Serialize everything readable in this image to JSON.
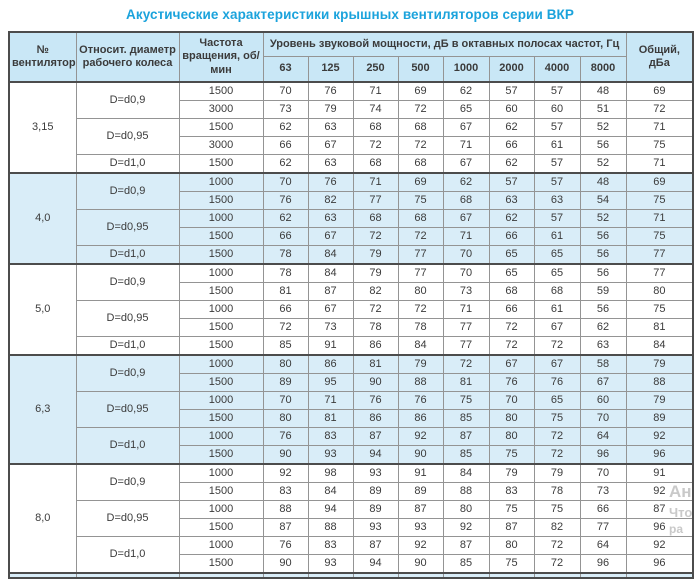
{
  "title": "Акустические характеристики крышных вентиляторов серии ВКР",
  "table": {
    "headers": {
      "fan": "№ вентилятора",
      "diameter": "Относит. диаметр рабочего колеса",
      "speed": "Частота вращения, об/мин",
      "spl_group": "Уровень звуковой мощности, дБ в октавных полосах частот, Гц",
      "octaves": [
        "63",
        "125",
        "250",
        "500",
        "1000",
        "2000",
        "4000",
        "8000"
      ],
      "total": "Общий, дБа"
    },
    "groups": [
      {
        "fan": "3,15",
        "shaded": false,
        "sub": [
          {
            "diameter": "D=d0,9",
            "rows": [
              {
                "speed": "1500",
                "levels": [
                  70,
                  76,
                  71,
                  69,
                  62,
                  57,
                  57,
                  48
                ],
                "total": 69
              },
              {
                "speed": "3000",
                "levels": [
                  73,
                  79,
                  74,
                  72,
                  65,
                  60,
                  60,
                  51
                ],
                "total": 72
              }
            ]
          },
          {
            "diameter": "D=d0,95",
            "rows": [
              {
                "speed": "1500",
                "levels": [
                  62,
                  63,
                  68,
                  68,
                  67,
                  62,
                  57,
                  52
                ],
                "total": 71
              },
              {
                "speed": "3000",
                "levels": [
                  66,
                  67,
                  72,
                  72,
                  71,
                  66,
                  61,
                  56
                ],
                "total": 75
              }
            ]
          },
          {
            "diameter": "D=d1,0",
            "rows": [
              {
                "speed": "1500",
                "levels": [
                  62,
                  63,
                  68,
                  68,
                  67,
                  62,
                  57,
                  52
                ],
                "total": 71
              }
            ]
          }
        ]
      },
      {
        "fan": "4,0",
        "shaded": true,
        "sub": [
          {
            "diameter": "D=d0,9",
            "rows": [
              {
                "speed": "1000",
                "levels": [
                  70,
                  76,
                  71,
                  69,
                  62,
                  57,
                  57,
                  48
                ],
                "total": 69
              },
              {
                "speed": "1500",
                "levels": [
                  76,
                  82,
                  77,
                  75,
                  68,
                  63,
                  63,
                  54
                ],
                "total": 75
              }
            ]
          },
          {
            "diameter": "D=d0,95",
            "rows": [
              {
                "speed": "1000",
                "levels": [
                  62,
                  63,
                  68,
                  68,
                  67,
                  62,
                  57,
                  52
                ],
                "total": 71
              },
              {
                "speed": "1500",
                "levels": [
                  66,
                  67,
                  72,
                  72,
                  71,
                  66,
                  61,
                  56
                ],
                "total": 75
              }
            ]
          },
          {
            "diameter": "D=d1,0",
            "rows": [
              {
                "speed": "1500",
                "levels": [
                  78,
                  84,
                  79,
                  77,
                  70,
                  65,
                  65,
                  56
                ],
                "total": 77
              }
            ]
          }
        ]
      },
      {
        "fan": "5,0",
        "shaded": false,
        "sub": [
          {
            "diameter": "D=d0,9",
            "rows": [
              {
                "speed": "1000",
                "levels": [
                  78,
                  84,
                  79,
                  77,
                  70,
                  65,
                  65,
                  56
                ],
                "total": 77
              },
              {
                "speed": "1500",
                "levels": [
                  81,
                  87,
                  82,
                  80,
                  73,
                  68,
                  68,
                  59
                ],
                "total": 80
              }
            ]
          },
          {
            "diameter": "D=d0,95",
            "rows": [
              {
                "speed": "1000",
                "levels": [
                  66,
                  67,
                  72,
                  72,
                  71,
                  66,
                  61,
                  56
                ],
                "total": 75
              },
              {
                "speed": "1500",
                "levels": [
                  72,
                  73,
                  78,
                  78,
                  77,
                  72,
                  67,
                  62
                ],
                "total": 81
              }
            ]
          },
          {
            "diameter": "D=d1,0",
            "rows": [
              {
                "speed": "1500",
                "levels": [
                  85,
                  91,
                  86,
                  84,
                  77,
                  72,
                  72,
                  63
                ],
                "total": 84
              }
            ]
          }
        ]
      },
      {
        "fan": "6,3",
        "shaded": true,
        "sub": [
          {
            "diameter": "D=d0,9",
            "rows": [
              {
                "speed": "1000",
                "levels": [
                  80,
                  86,
                  81,
                  79,
                  72,
                  67,
                  67,
                  58
                ],
                "total": 79
              },
              {
                "speed": "1500",
                "levels": [
                  89,
                  95,
                  90,
                  88,
                  81,
                  76,
                  76,
                  67
                ],
                "total": 88
              }
            ]
          },
          {
            "diameter": "D=d0,95",
            "rows": [
              {
                "speed": "1000",
                "levels": [
                  70,
                  71,
                  76,
                  76,
                  75,
                  70,
                  65,
                  60
                ],
                "total": 79
              },
              {
                "speed": "1500",
                "levels": [
                  80,
                  81,
                  86,
                  86,
                  85,
                  80,
                  75,
                  70
                ],
                "total": 89
              }
            ]
          },
          {
            "diameter": "D=d1,0",
            "rows": [
              {
                "speed": "1000",
                "levels": [
                  76,
                  83,
                  87,
                  92,
                  87,
                  80,
                  72,
                  64
                ],
                "total": 92
              },
              {
                "speed": "1500",
                "levels": [
                  90,
                  93,
                  94,
                  90,
                  85,
                  75,
                  72,
                  96
                ],
                "total": 96
              }
            ]
          }
        ]
      },
      {
        "fan": "8,0",
        "shaded": false,
        "sub": [
          {
            "diameter": "D=d0,9",
            "rows": [
              {
                "speed": "1000",
                "levels": [
                  92,
                  98,
                  93,
                  91,
                  84,
                  79,
                  79,
                  70
                ],
                "total": 91
              },
              {
                "speed": "1500",
                "levels": [
                  83,
                  84,
                  89,
                  89,
                  88,
                  83,
                  78,
                  73
                ],
                "total": 92
              }
            ]
          },
          {
            "diameter": "D=d0,95",
            "rows": [
              {
                "speed": "1000",
                "levels": [
                  88,
                  94,
                  89,
                  87,
                  80,
                  75,
                  75,
                  66
                ],
                "total": 87
              },
              {
                "speed": "1500",
                "levels": [
                  87,
                  88,
                  93,
                  93,
                  92,
                  87,
                  82,
                  77
                ],
                "total": 96
              }
            ]
          },
          {
            "diameter": "D=d1,0",
            "rows": [
              {
                "speed": "1000",
                "levels": [
                  76,
                  83,
                  87,
                  92,
                  87,
                  80,
                  72,
                  64
                ],
                "total": 92
              },
              {
                "speed": "1500",
                "levels": [
                  90,
                  93,
                  94,
                  90,
                  85,
                  75,
                  72,
                  96
                ],
                "total": 96
              }
            ]
          }
        ]
      }
    ]
  },
  "watermark": {
    "line1": "Ан",
    "line2": "Что",
    "line3": "ра"
  },
  "colors": {
    "title": "#1ba3dc",
    "header_bg": "#c9e7f6",
    "shaded_row_bg": "#d9edf8",
    "border_dark": "#4c4c4c",
    "border_light": "#949494",
    "text": "#3b3b3b"
  }
}
